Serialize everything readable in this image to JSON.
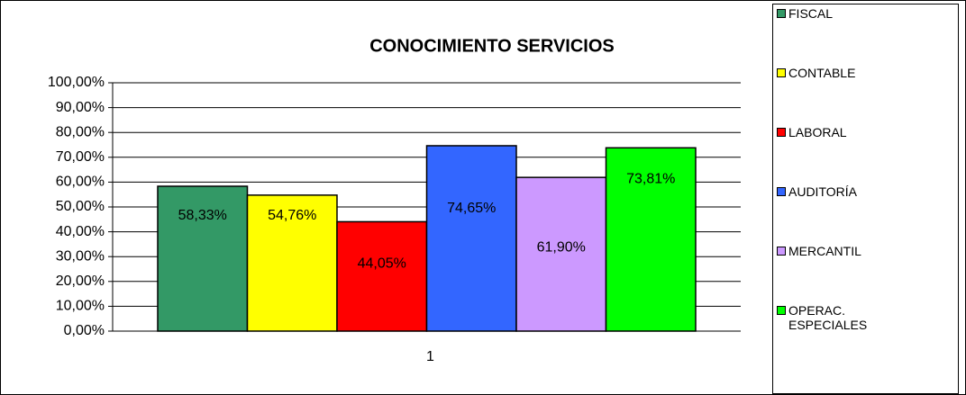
{
  "chart_data": {
    "type": "bar",
    "title": "CONOCIMIENTO SERVICIOS",
    "categories": [
      "1"
    ],
    "series": [
      {
        "name": "FISCAL",
        "color": "#339966",
        "values": [
          58.33
        ],
        "value_labels": [
          "58,33%"
        ]
      },
      {
        "name": "CONTABLE",
        "color": "#ffff00",
        "values": [
          54.76
        ],
        "value_labels": [
          "54,76%"
        ]
      },
      {
        "name": "LABORAL",
        "color": "#ff0000",
        "values": [
          44.05
        ],
        "value_labels": [
          "44,05%"
        ]
      },
      {
        "name": "AUDITORÍA",
        "color": "#3366ff",
        "values": [
          74.65
        ],
        "value_labels": [
          "74,65%"
        ]
      },
      {
        "name": "MERCANTIL",
        "color": "#cc99ff",
        "values": [
          61.9
        ],
        "value_labels": [
          "61,90%"
        ]
      },
      {
        "name": "OPERAC. ESPECIALES",
        "color": "#00ff00",
        "values": [
          73.81
        ],
        "value_labels": [
          "73,81%"
        ]
      }
    ],
    "ylim": [
      0,
      100
    ],
    "yticks": [
      {
        "value": 0,
        "label": "0,00%"
      },
      {
        "value": 10,
        "label": "10,00%"
      },
      {
        "value": 20,
        "label": "20,00%"
      },
      {
        "value": 30,
        "label": "30,00%"
      },
      {
        "value": 40,
        "label": "40,00%"
      },
      {
        "value": 50,
        "label": "50,00%"
      },
      {
        "value": 60,
        "label": "60,00%"
      },
      {
        "value": 70,
        "label": "70,00%"
      },
      {
        "value": 80,
        "label": "80,00%"
      },
      {
        "value": 90,
        "label": "90,00%"
      },
      {
        "value": 100,
        "label": "100,00%"
      }
    ],
    "grid": true,
    "legend": "right"
  }
}
